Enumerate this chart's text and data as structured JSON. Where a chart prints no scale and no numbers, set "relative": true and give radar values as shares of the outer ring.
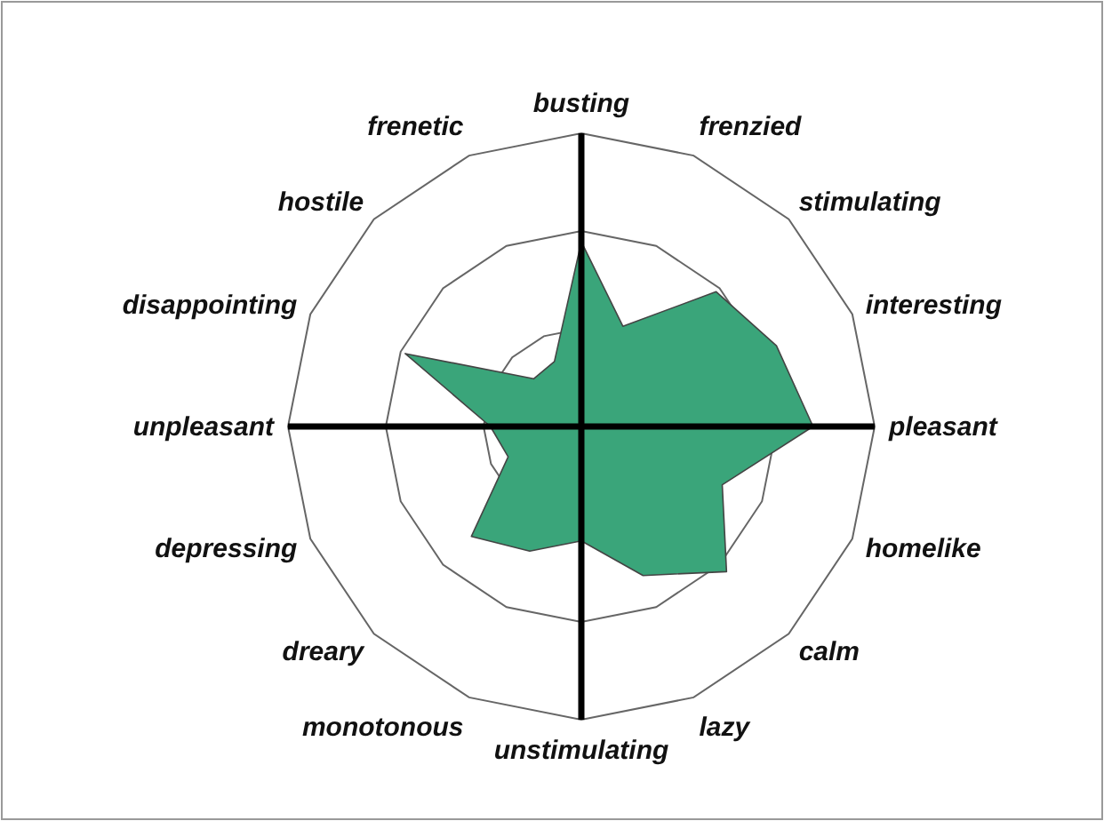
{
  "chart_data": {
    "type": "radar",
    "relative": true,
    "grid": true,
    "categories": [
      "busting",
      "frenzied",
      "stimulating",
      "interesting",
      "pleasant",
      "homelike",
      "calm",
      "lazy",
      "unstimulating",
      "monotonous",
      "dreary",
      "depressing",
      "unpleasant",
      "disappointing",
      "hostile",
      "frenetic"
    ],
    "series": [
      {
        "color": "#3aa57a",
        "values": [
          0.63,
          0.37,
          0.65,
          0.72,
          0.79,
          0.52,
          0.7,
          0.55,
          0.39,
          0.46,
          0.53,
          0.27,
          0.31,
          0.65,
          0.23,
          0.24
        ]
      }
    ]
  }
}
